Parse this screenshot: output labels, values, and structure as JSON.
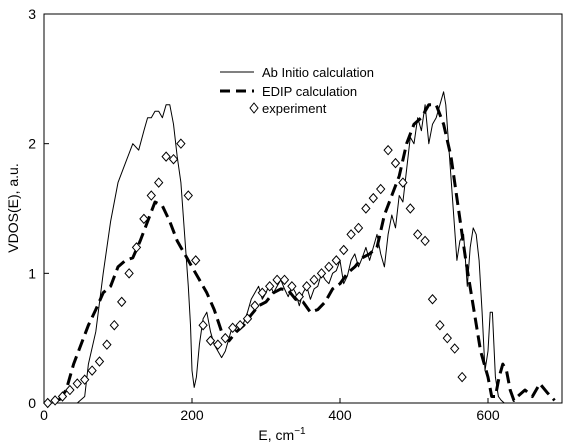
{
  "chart_data": {
    "type": "line",
    "title": "",
    "xlabel": "E, cm",
    "xlabel_sup": "−1",
    "ylabel": "VDOS(E), a.u.",
    "xlim": [
      0,
      700
    ],
    "ylim": [
      0,
      3
    ],
    "xticks": [
      0,
      200,
      400,
      600
    ],
    "yticks": [
      0,
      1,
      2,
      3
    ],
    "grid": false,
    "legend_position": "top-center",
    "series": [
      {
        "name": "Ab Initio calculation",
        "style": "thin-solid",
        "color": "#000000",
        "x": [
          45,
          55,
          60,
          70,
          80,
          90,
          100,
          110,
          120,
          128,
          135,
          140,
          145,
          150,
          155,
          160,
          165,
          170,
          175,
          180,
          185,
          190,
          195,
          198,
          200,
          203,
          206,
          210,
          215,
          220,
          225,
          230,
          235,
          240,
          245,
          250,
          255,
          260,
          265,
          270,
          275,
          280,
          285,
          290,
          295,
          300,
          305,
          310,
          315,
          320,
          325,
          330,
          335,
          340,
          345,
          350,
          355,
          360,
          365,
          370,
          375,
          380,
          385,
          390,
          395,
          400,
          405,
          410,
          415,
          420,
          425,
          430,
          435,
          440,
          445,
          450,
          455,
          460,
          465,
          470,
          475,
          480,
          485,
          490,
          495,
          500,
          505,
          510,
          515,
          520,
          525,
          530,
          535,
          540,
          543,
          548,
          553,
          558,
          562,
          567,
          572,
          576,
          580,
          584,
          588,
          592,
          596,
          600,
          603,
          606,
          610,
          614,
          618,
          622
        ],
        "y": [
          0.0,
          0.05,
          0.3,
          0.55,
          1.0,
          1.4,
          1.7,
          1.85,
          2.0,
          1.95,
          2.1,
          2.2,
          2.2,
          2.25,
          2.25,
          2.2,
          2.3,
          2.3,
          2.15,
          1.9,
          1.7,
          1.3,
          0.9,
          0.6,
          0.25,
          0.12,
          0.2,
          0.45,
          0.65,
          0.7,
          0.55,
          0.45,
          0.4,
          0.35,
          0.4,
          0.5,
          0.6,
          0.55,
          0.6,
          0.62,
          0.7,
          0.8,
          0.85,
          0.9,
          0.8,
          0.85,
          0.92,
          0.85,
          0.9,
          0.95,
          0.88,
          0.82,
          0.9,
          0.85,
          0.75,
          0.85,
          0.9,
          0.8,
          0.88,
          0.9,
          1.0,
          0.95,
          0.92,
          1.0,
          1.02,
          1.1,
          0.92,
          0.98,
          1.1,
          1.15,
          1.05,
          1.12,
          1.2,
          1.1,
          1.2,
          1.3,
          1.15,
          1.05,
          1.3,
          1.45,
          1.35,
          1.6,
          1.55,
          1.8,
          2.05,
          2.0,
          2.2,
          2.1,
          2.3,
          2.0,
          2.15,
          2.2,
          2.3,
          2.4,
          2.3,
          1.9,
          1.5,
          1.1,
          1.25,
          1.3,
          0.9,
          1.2,
          1.35,
          1.3,
          1.1,
          0.7,
          0.25,
          0.4,
          0.7,
          0.7,
          0.2,
          0.05,
          0.02,
          0.0
        ]
      },
      {
        "name": "EDIP calculation",
        "style": "thick-dashed",
        "color": "#000000",
        "x": [
          20,
          30,
          40,
          50,
          60,
          70,
          80,
          90,
          100,
          110,
          120,
          130,
          140,
          150,
          160,
          170,
          180,
          190,
          200,
          210,
          220,
          230,
          240,
          250,
          260,
          270,
          280,
          290,
          300,
          310,
          320,
          330,
          340,
          350,
          360,
          370,
          380,
          390,
          400,
          410,
          420,
          430,
          440,
          450,
          460,
          470,
          480,
          490,
          500,
          510,
          520,
          530,
          540,
          550,
          560,
          570,
          580,
          590,
          600,
          605,
          610,
          615,
          620,
          625,
          630,
          635,
          640,
          650,
          660,
          670,
          680,
          690
        ],
        "y": [
          0.02,
          0.1,
          0.3,
          0.45,
          0.6,
          0.72,
          0.85,
          0.9,
          1.05,
          1.1,
          1.12,
          1.25,
          1.4,
          1.55,
          1.52,
          1.4,
          1.25,
          1.15,
          1.05,
          0.95,
          0.85,
          0.72,
          0.55,
          0.48,
          0.55,
          0.6,
          0.68,
          0.75,
          0.78,
          0.85,
          0.88,
          0.87,
          0.8,
          0.78,
          0.7,
          0.72,
          0.78,
          0.88,
          0.92,
          1.0,
          1.05,
          1.12,
          1.15,
          1.2,
          1.45,
          1.6,
          1.75,
          2.0,
          2.15,
          2.2,
          2.3,
          2.3,
          2.15,
          1.9,
          1.5,
          1.1,
          0.75,
          0.4,
          0.2,
          0.05,
          0.05,
          0.2,
          0.3,
          0.25,
          0.1,
          0.02,
          0.05,
          0.1,
          0.05,
          0.15,
          0.08,
          0.02
        ]
      },
      {
        "name": "experiment",
        "style": "open-diamond-markers",
        "color": "#000000",
        "x": [
          5,
          15,
          25,
          35,
          45,
          55,
          65,
          75,
          85,
          95,
          105,
          115,
          125,
          135,
          145,
          155,
          165,
          175,
          185,
          195,
          205,
          215,
          225,
          235,
          245,
          255,
          265,
          275,
          285,
          295,
          305,
          315,
          325,
          335,
          345,
          355,
          365,
          375,
          385,
          395,
          405,
          415,
          425,
          435,
          445,
          455,
          465,
          475,
          485,
          495,
          505,
          515,
          525,
          535,
          545,
          555,
          565
        ],
        "y": [
          0.0,
          0.02,
          0.05,
          0.1,
          0.15,
          0.18,
          0.25,
          0.32,
          0.45,
          0.6,
          0.78,
          1.0,
          1.2,
          1.42,
          1.6,
          1.7,
          1.9,
          1.88,
          2.0,
          1.6,
          1.1,
          0.6,
          0.48,
          0.45,
          0.5,
          0.58,
          0.6,
          0.65,
          0.75,
          0.85,
          0.9,
          0.95,
          0.95,
          0.9,
          0.82,
          0.9,
          0.95,
          1.0,
          1.05,
          1.1,
          1.18,
          1.3,
          1.35,
          1.5,
          1.58,
          1.65,
          1.95,
          1.85,
          1.7,
          1.5,
          1.3,
          1.25,
          0.8,
          0.6,
          0.5,
          0.42,
          0.2
        ]
      }
    ]
  }
}
